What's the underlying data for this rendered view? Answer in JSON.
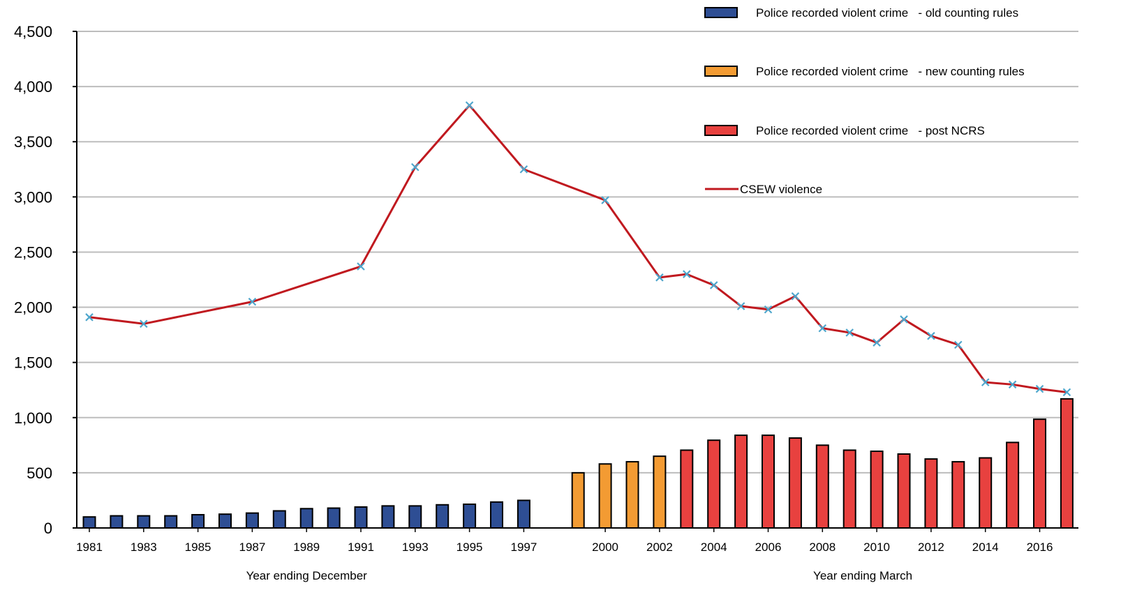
{
  "chart_data": {
    "type": "bar",
    "title": "",
    "ylim": [
      0,
      4500
    ],
    "yticks": [
      "0",
      "500",
      "1,000",
      "1,500",
      "2,000",
      "2,500",
      "3,000",
      "3,500",
      "4,000",
      "4,500"
    ],
    "grid": true,
    "legend_position": "top-right",
    "group_labels": [
      "Year ending December",
      "Year ending March"
    ],
    "x_tick_labels": [
      "1981",
      "1983",
      "1985",
      "1987",
      "1989",
      "1991",
      "1993",
      "1995",
      "1997",
      "2000",
      "2002",
      "2004",
      "2006",
      "2008",
      "2010",
      "2012",
      "2014",
      "2016"
    ],
    "categories": [
      "1981",
      "1982",
      "1983",
      "1984",
      "1985",
      "1986",
      "1987",
      "1988",
      "1989",
      "1990",
      "1991",
      "1992",
      "1993",
      "1994",
      "1995",
      "1996",
      "1997",
      "1999",
      "2000",
      "2001",
      "2002",
      "2003",
      "2004",
      "2005",
      "2006",
      "2007",
      "2008",
      "2009",
      "2010",
      "2011",
      "2012",
      "2013",
      "2014",
      "2015",
      "2016",
      "2017"
    ],
    "series": [
      {
        "name": "Police recorded violent crime   - old counting rules",
        "kind": "bar",
        "color": "#2e4e94",
        "values": [
          100,
          110,
          110,
          110,
          120,
          125,
          135,
          155,
          175,
          180,
          190,
          200,
          200,
          210,
          215,
          235,
          250,
          null,
          null,
          null,
          null,
          null,
          null,
          null,
          null,
          null,
          null,
          null,
          null,
          null,
          null,
          null,
          null,
          null,
          null,
          null
        ]
      },
      {
        "name": "Police recorded violent crime   - new counting rules",
        "kind": "bar",
        "color": "#f39b33",
        "values": [
          null,
          null,
          null,
          null,
          null,
          null,
          null,
          null,
          null,
          null,
          null,
          null,
          null,
          null,
          null,
          null,
          null,
          500,
          580,
          600,
          650,
          null,
          null,
          null,
          null,
          null,
          null,
          null,
          null,
          null,
          null,
          null,
          null,
          null,
          null,
          null
        ]
      },
      {
        "name": "Police recorded violent crime   - post NCRS",
        "kind": "bar",
        "color": "#e8413f",
        "values": [
          null,
          null,
          null,
          null,
          null,
          null,
          null,
          null,
          null,
          null,
          null,
          null,
          null,
          null,
          null,
          null,
          null,
          null,
          null,
          null,
          null,
          705,
          795,
          840,
          840,
          815,
          750,
          705,
          695,
          670,
          625,
          600,
          635,
          775,
          985,
          1170
        ]
      },
      {
        "name": "CSEW violence",
        "kind": "line",
        "color": "#c0191f",
        "marker_color": "#4ea6cc",
        "points": [
          {
            "x": "1981",
            "y": 1910
          },
          {
            "x": "1983",
            "y": 1850
          },
          {
            "x": "1987",
            "y": 2050
          },
          {
            "x": "1991",
            "y": 2370
          },
          {
            "x": "1993",
            "y": 3270
          },
          {
            "x": "1995",
            "y": 3830
          },
          {
            "x": "1997",
            "y": 3250
          },
          {
            "x": "2000",
            "y": 2970
          },
          {
            "x": "2002",
            "y": 2270
          },
          {
            "x": "2003",
            "y": 2300
          },
          {
            "x": "2004",
            "y": 2200
          },
          {
            "x": "2005",
            "y": 2010
          },
          {
            "x": "2006",
            "y": 1980
          },
          {
            "x": "2007",
            "y": 2100
          },
          {
            "x": "2008",
            "y": 1810
          },
          {
            "x": "2009",
            "y": 1770
          },
          {
            "x": "2010",
            "y": 1680
          },
          {
            "x": "2011",
            "y": 1890
          },
          {
            "x": "2012",
            "y": 1740
          },
          {
            "x": "2013",
            "y": 1660
          },
          {
            "x": "2014",
            "y": 1320
          },
          {
            "x": "2015",
            "y": 1300
          },
          {
            "x": "2016",
            "y": 1260
          },
          {
            "x": "2017",
            "y": 1230
          }
        ]
      }
    ]
  }
}
